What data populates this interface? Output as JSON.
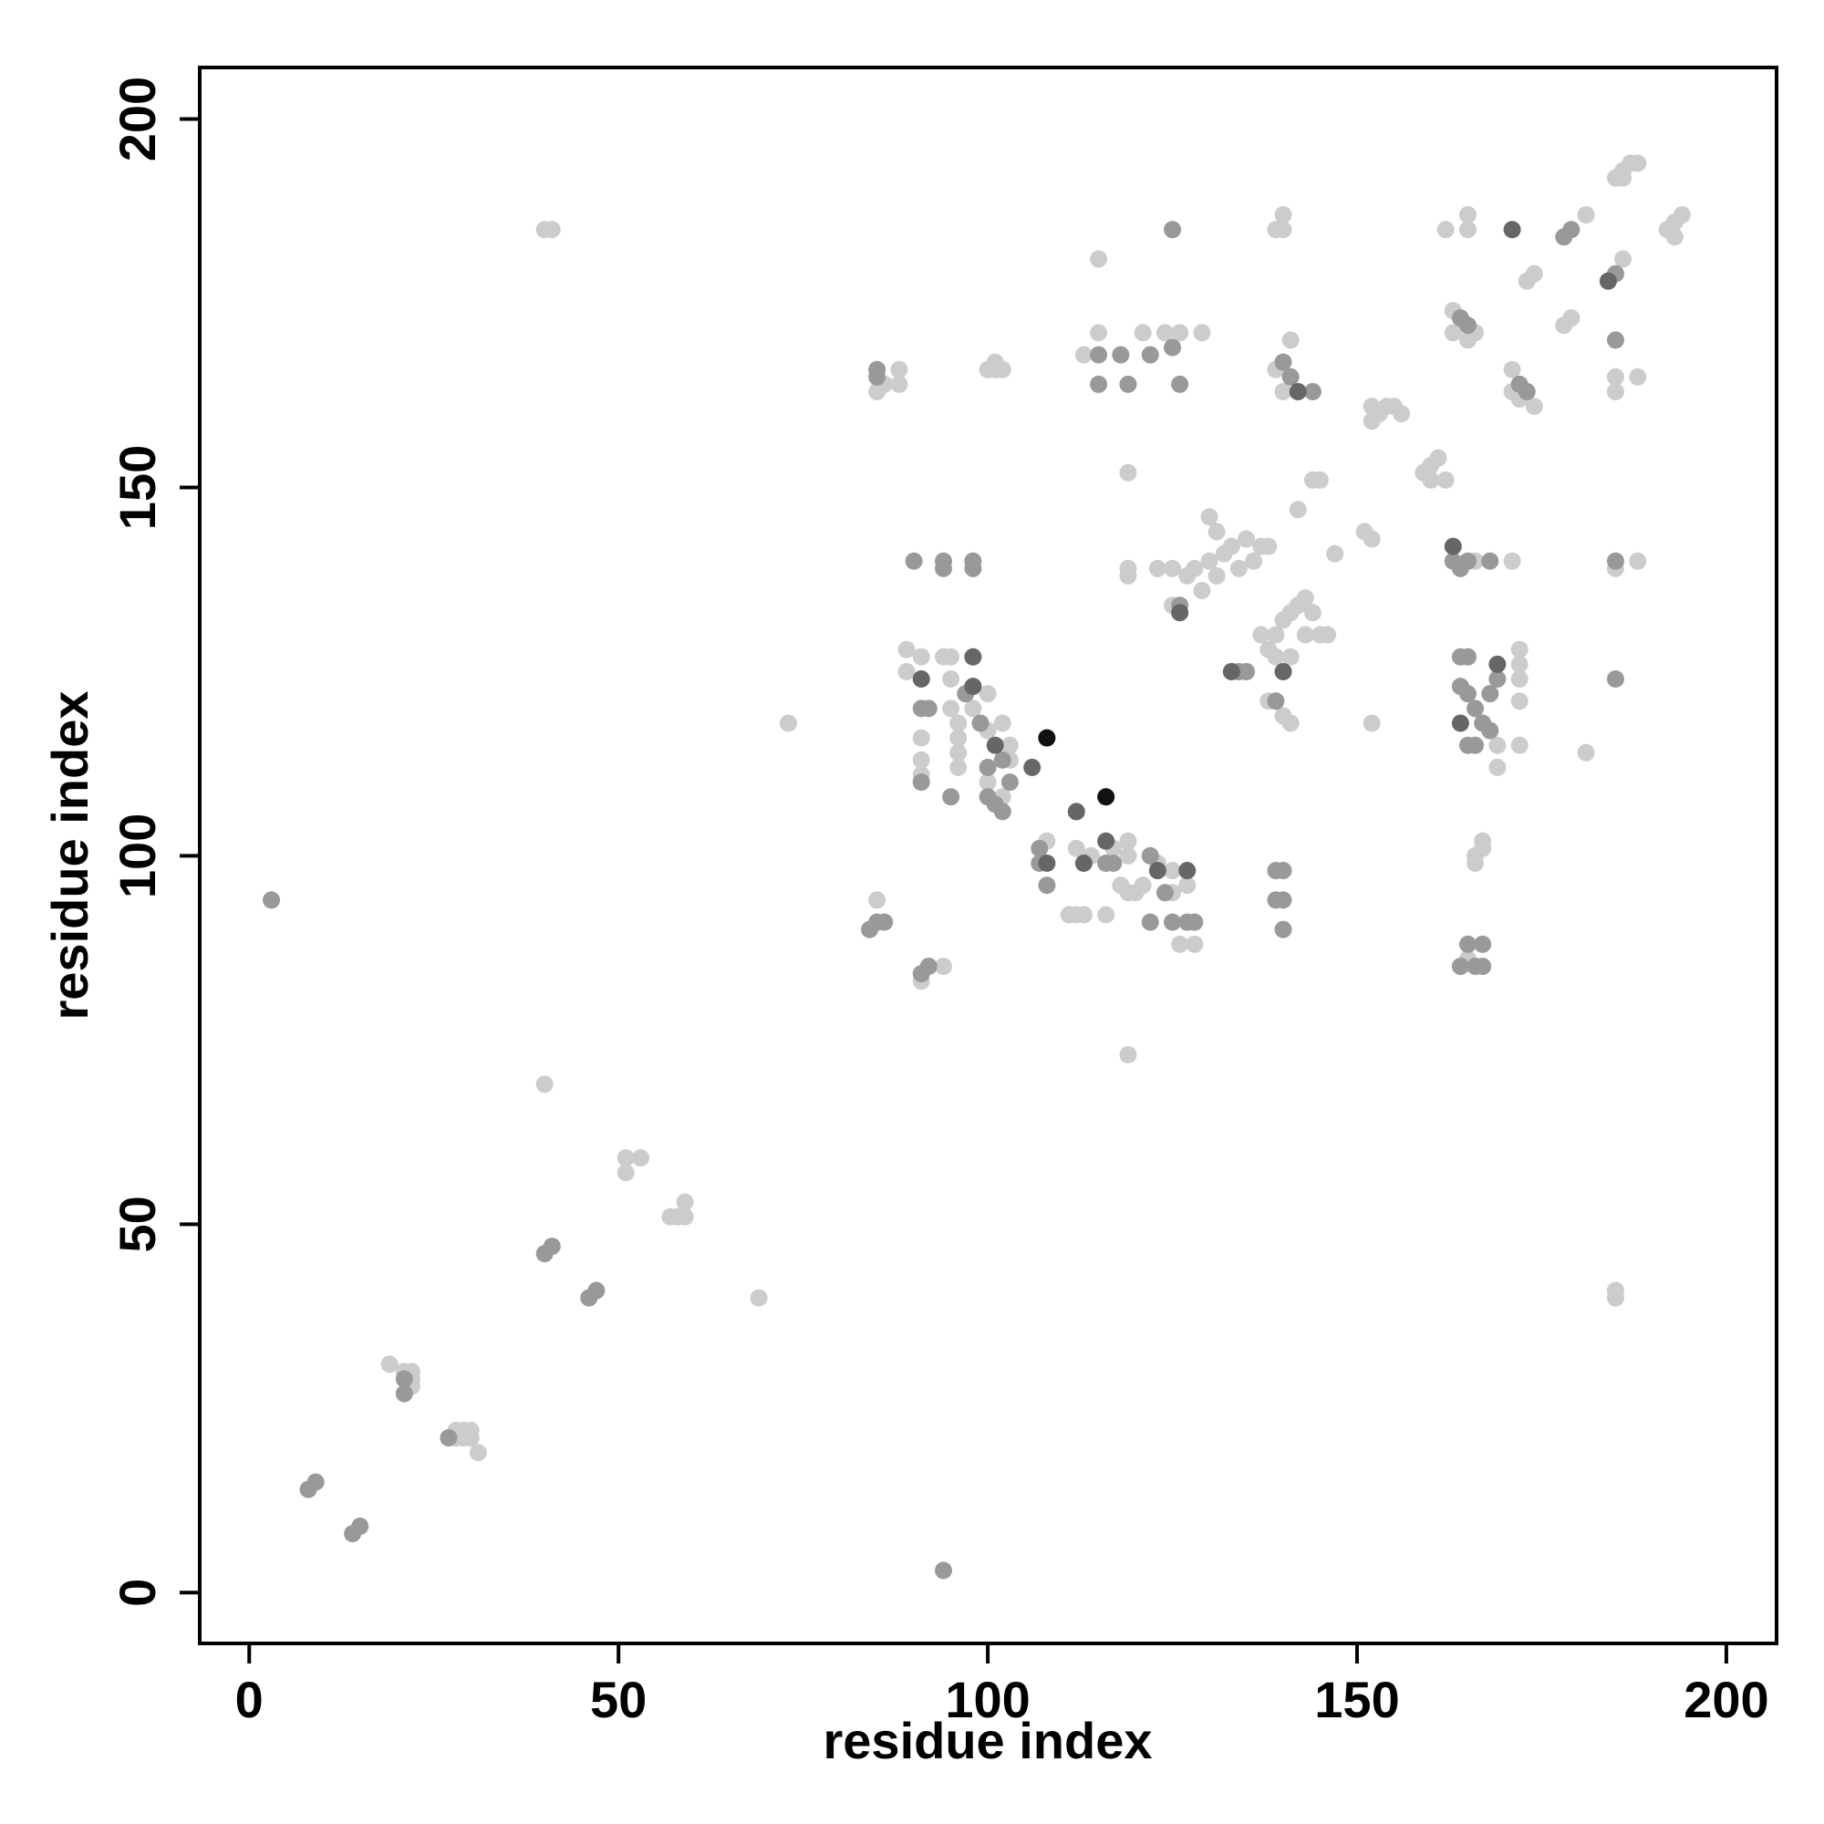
{
  "chart_data": {
    "type": "scatter",
    "x_label": "residue index",
    "y_label": "residue index",
    "xlim": [
      -6.7,
      206.8
    ],
    "ylim": [
      -6.9,
      207
    ],
    "xticks": [
      0,
      50,
      100,
      150,
      200
    ],
    "yticks": [
      0,
      50,
      100,
      150,
      200
    ],
    "series": [
      {
        "color": "#cccccc",
        "x": [
          19,
          21,
          22,
          22,
          28,
          29,
          30,
          28,
          29,
          30,
          31,
          40,
          51,
          53,
          51,
          57,
          58,
          59,
          59,
          69,
          73,
          40,
          41,
          185,
          185,
          85,
          94,
          91,
          86,
          85,
          88,
          88,
          100,
          101,
          102,
          101,
          115,
          124,
          126,
          129,
          121,
          113,
          115,
          119,
          140,
          140,
          139,
          139,
          140,
          141,
          130,
          132,
          133,
          135,
          131,
          130,
          128,
          127,
          125,
          123,
          119,
          119,
          125,
          129,
          131,
          134,
          136,
          137,
          138,
          139,
          140,
          141,
          142,
          143,
          144,
          143,
          145,
          146,
          139,
          141,
          138,
          137,
          138,
          140,
          141,
          142,
          144,
          145,
          147,
          151,
          152,
          152,
          152,
          153,
          154,
          155,
          156,
          152,
          159,
          160,
          161,
          160,
          162,
          166,
          171,
          163,
          166,
          163,
          165,
          162,
          165,
          165,
          169,
          169,
          172,
          172,
          172,
          172,
          172,
          166,
          167,
          166,
          167,
          165,
          171,
          172,
          174,
          171,
          173,
          174,
          181,
          178,
          179,
          186,
          185,
          186,
          187,
          188,
          186,
          192,
          193,
          194,
          193,
          185,
          185,
          188,
          185,
          188,
          181,
          119,
          89,
          89,
          91,
          91,
          91,
          91,
          94,
          95,
          95,
          95,
          96,
          96,
          96,
          96,
          98,
          100,
          100,
          102,
          103,
          103,
          102,
          100,
          108,
          111,
          112,
          113,
          112,
          114,
          117,
          118,
          119,
          120,
          121,
          119,
          119,
          123,
          125,
          126,
          127,
          128,
          125,
          116,
          22
        ],
        "values": [
          31,
          30,
          30,
          29,
          21,
          21,
          21,
          22,
          22,
          22,
          19,
          69,
          59,
          59,
          57,
          51,
          51,
          51,
          53,
          40,
          118,
          185,
          185,
          40,
          41,
          94,
          85,
          83,
          164,
          163,
          166,
          164,
          166,
          166,
          166,
          167,
          171,
          171,
          171,
          171,
          171,
          168,
          181,
          152,
          185,
          187,
          185,
          166,
          163,
          170,
          140,
          141,
          142,
          143,
          144,
          146,
          139,
          138,
          139,
          139,
          139,
          138,
          134,
          136,
          138,
          139,
          140,
          142,
          142,
          130,
          132,
          133,
          134,
          135,
          133,
          130,
          130,
          130,
          127,
          127,
          128,
          130,
          121,
          119,
          118,
          147,
          151,
          151,
          141,
          144,
          143,
          118,
          161,
          160,
          161,
          161,
          160,
          159,
          152,
          153,
          154,
          151,
          151,
          140,
          140,
          174,
          171,
          171,
          170,
          185,
          185,
          187,
          115,
          112,
          126,
          128,
          124,
          121,
          115,
          100,
          101,
          99,
          102,
          86,
          166,
          162,
          161,
          163,
          178,
          179,
          187,
          172,
          173,
          181,
          192,
          193,
          194,
          194,
          192,
          185,
          186,
          187,
          184,
          165,
          163,
          165,
          139,
          140,
          114,
          73,
          128,
          125,
          127,
          116,
          113,
          111,
          127,
          127,
          124,
          120,
          118,
          116,
          114,
          112,
          120,
          117,
          110,
          108,
          113,
          115,
          118,
          122,
          102,
          92,
          92,
          92,
          101,
          100,
          101,
          96,
          95,
          95,
          96,
          102,
          100,
          99,
          95,
          88,
          96,
          88,
          98,
          92,
          28
        ]
      },
      {
        "color": "#999999",
        "x": [
          3,
          8,
          9,
          14,
          15,
          21,
          27,
          40,
          41,
          46,
          47,
          94,
          84,
          85,
          86,
          91,
          92,
          90,
          94,
          94,
          98,
          98,
          85,
          85,
          115,
          115,
          118,
          119,
          122,
          125,
          125,
          140,
          141,
          144,
          139,
          140,
          139,
          140,
          140,
          107,
          108,
          107,
          117,
          122,
          125,
          127,
          128,
          122,
          124,
          91,
          92,
          91,
          95,
          97,
          99,
          100,
          100,
          101,
          102,
          103,
          102,
          126,
          134,
          135,
          139,
          164,
          165,
          164,
          165,
          166,
          165,
          166,
          167,
          168,
          168,
          169,
          164,
          165,
          168,
          163,
          165,
          164,
          172,
          173,
          178,
          179,
          185,
          185,
          185,
          185,
          164,
          166,
          167,
          165,
          167,
          21,
          116,
          126
        ],
        "values": [
          94,
          14,
          15,
          8,
          9,
          27,
          21,
          46,
          47,
          40,
          41,
          3,
          90,
          91,
          91,
          84,
          85,
          140,
          139,
          140,
          139,
          140,
          165,
          166,
          168,
          164,
          168,
          164,
          168,
          169,
          185,
          167,
          165,
          163,
          98,
          98,
          94,
          94,
          90,
          101,
          96,
          99,
          99,
          91,
          91,
          91,
          91,
          100,
          95,
          120,
          120,
          110,
          108,
          122,
          118,
          112,
          108,
          107,
          106,
          110,
          113,
          134,
          125,
          125,
          121,
          127,
          127,
          123,
          122,
          120,
          115,
          115,
          118,
          117,
          122,
          124,
          139,
          140,
          140,
          140,
          172,
          173,
          164,
          163,
          184,
          185,
          179,
          170,
          140,
          124,
          85,
          85,
          85,
          88,
          88,
          29,
          99,
          164
        ]
      },
      {
        "color": "#666666",
        "x": [
          98,
          123,
          127,
          112,
          106,
          140,
          142,
          113,
          108,
          116,
          98,
          101,
          126,
          91,
          164,
          169,
          133,
          184,
          171,
          163
        ],
        "values": [
          127,
          98,
          98,
          106,
          112,
          125,
          163,
          99,
          99,
          102,
          123,
          115,
          133,
          124,
          118,
          126,
          125,
          178,
          185,
          142
        ]
      },
      {
        "color": "#111111",
        "x": [
          108,
          116
        ],
        "values": [
          116,
          108
        ]
      }
    ]
  }
}
